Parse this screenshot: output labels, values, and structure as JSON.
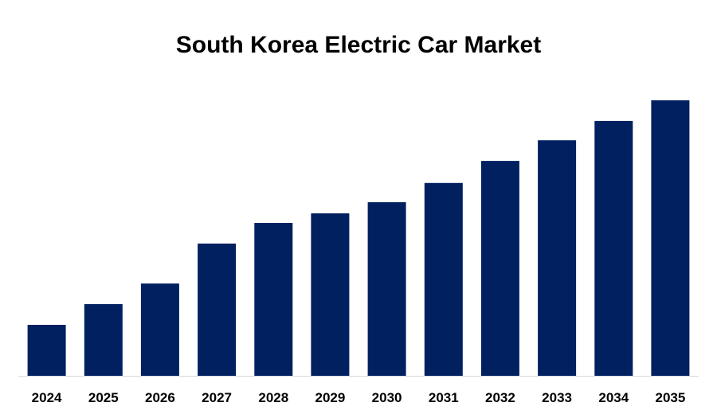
{
  "chart_data": {
    "type": "bar",
    "title": "South Korea Electric Car Market",
    "categories": [
      "2024",
      "2025",
      "2026",
      "2027",
      "2028",
      "2029",
      "2030",
      "2031",
      "2032",
      "2033",
      "2034",
      "2035"
    ],
    "values": [
      18.5,
      26,
      33.5,
      48,
      55.5,
      59,
      63,
      70,
      78,
      85.5,
      92.5,
      100
    ],
    "xlabel": "",
    "ylabel": "",
    "ylim": [
      0,
      100
    ],
    "grid": false,
    "legend": "none",
    "colors": {
      "bar": "#002060",
      "axis": "#d9d9d9"
    }
  }
}
